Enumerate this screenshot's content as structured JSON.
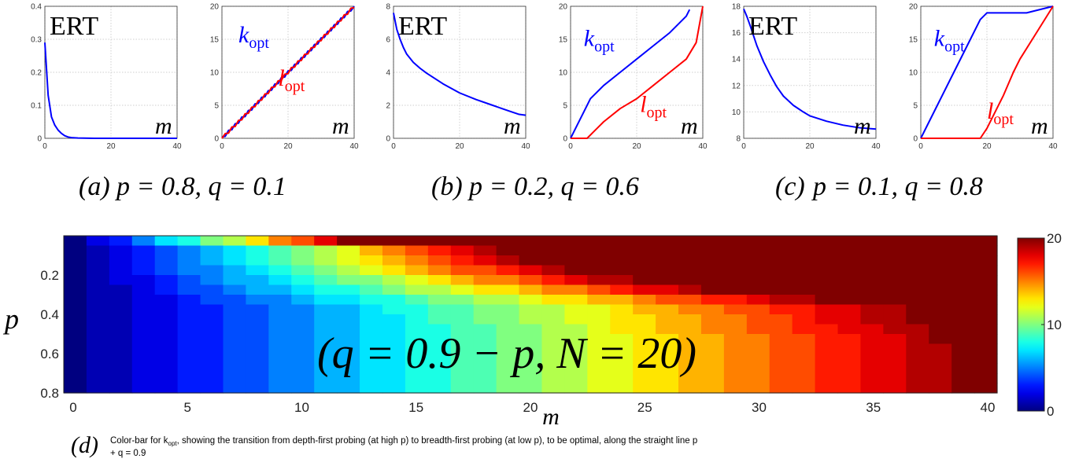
{
  "chart_data": [
    {
      "id": "a_ert",
      "type": "line",
      "title": "ERT",
      "xlabel": "m",
      "xlim": [
        0,
        40
      ],
      "ylim": [
        0,
        0.4
      ],
      "xticks": [
        "0",
        "20",
        "40"
      ],
      "yticks": [
        "0",
        "0.1",
        "0.2",
        "0.3",
        "0.4"
      ],
      "series": [
        {
          "color": "#0000ff",
          "x": [
            0,
            1,
            2,
            3,
            4,
            5,
            6,
            7,
            8,
            10,
            15,
            20,
            30,
            40
          ],
          "y": [
            0.29,
            0.13,
            0.065,
            0.04,
            0.025,
            0.015,
            0.008,
            0.004,
            0.002,
            0.001,
            0,
            0,
            0,
            0
          ]
        }
      ]
    },
    {
      "id": "a_opt",
      "type": "line",
      "xlabel": "m",
      "xlim": [
        0,
        40
      ],
      "ylim": [
        0,
        20
      ],
      "xticks": [
        "0",
        "20",
        "40"
      ],
      "yticks": [
        "0",
        "5",
        "10",
        "15",
        "20"
      ],
      "series": [
        {
          "name": "k_opt",
          "color": "#0000ff",
          "label_pos": [
            5,
            14.5
          ],
          "x": [
            0,
            10,
            20,
            30,
            40
          ],
          "y": [
            0,
            5,
            10,
            15,
            20
          ]
        },
        {
          "name": "l_opt",
          "color": "#ff0000",
          "label_pos": [
            17,
            8
          ],
          "x": [
            0,
            10,
            20,
            30,
            40
          ],
          "y": [
            0,
            5,
            10,
            15,
            20
          ]
        }
      ]
    },
    {
      "id": "b_ert",
      "type": "line",
      "title": "ERT",
      "xlabel": "m",
      "xlim": [
        0,
        40
      ],
      "ylim": [
        0,
        8
      ],
      "xticks": [
        "0",
        "20",
        "40"
      ],
      "yticks": [
        "0",
        "2",
        "4",
        "6",
        "8"
      ],
      "series": [
        {
          "color": "#0000ff",
          "x": [
            0,
            1,
            2,
            3,
            4,
            6,
            8,
            10,
            15,
            20,
            25,
            30,
            35,
            38,
            40
          ],
          "y": [
            7.6,
            6.6,
            6.0,
            5.5,
            5.1,
            4.6,
            4.25,
            3.95,
            3.3,
            2.75,
            2.35,
            2.0,
            1.65,
            1.45,
            1.4
          ]
        }
      ]
    },
    {
      "id": "b_opt",
      "type": "line",
      "xlabel": "m",
      "xlim": [
        0,
        40
      ],
      "ylim": [
        0,
        20
      ],
      "xticks": [
        "0",
        "20",
        "40"
      ],
      "yticks": [
        "0",
        "5",
        "10",
        "15",
        "20"
      ],
      "series": [
        {
          "name": "k_opt",
          "color": "#0000ff",
          "label_pos": [
            4,
            14
          ],
          "x": [
            0,
            2,
            4,
            6,
            8,
            10,
            15,
            20,
            25,
            30,
            35,
            36
          ],
          "y": [
            0,
            2,
            4,
            6,
            7,
            8,
            10,
            12,
            14,
            16,
            18.5,
            19.5
          ]
        },
        {
          "name": "l_opt",
          "color": "#ff0000",
          "label_pos": [
            21,
            4
          ],
          "x": [
            0,
            5,
            7,
            10,
            15,
            20,
            25,
            30,
            35,
            38,
            40
          ],
          "y": [
            0,
            0,
            1,
            2.5,
            4.5,
            6,
            8,
            10,
            12,
            14.5,
            20
          ]
        }
      ]
    },
    {
      "id": "c_ert",
      "type": "line",
      "title": "ERT",
      "xlabel": "m",
      "xlim": [
        0,
        40
      ],
      "ylim": [
        8,
        18
      ],
      "xticks": [
        "0",
        "20",
        "40"
      ],
      "yticks": [
        "8",
        "10",
        "12",
        "14",
        "16",
        "18"
      ],
      "series": [
        {
          "color": "#0000ff",
          "x": [
            0,
            1,
            2,
            4,
            6,
            8,
            10,
            12,
            15,
            18,
            20,
            25,
            30,
            35,
            40
          ],
          "y": [
            17.8,
            17.2,
            16.5,
            15.0,
            13.8,
            12.8,
            11.9,
            11.2,
            10.5,
            10.0,
            9.7,
            9.3,
            9.0,
            8.8,
            8.7
          ]
        }
      ]
    },
    {
      "id": "c_opt",
      "type": "line",
      "xlabel": "m",
      "xlim": [
        0,
        40
      ],
      "ylim": [
        0,
        20
      ],
      "xticks": [
        "0",
        "20",
        "40"
      ],
      "yticks": [
        "0",
        "5",
        "10",
        "15",
        "20"
      ],
      "series": [
        {
          "name": "k_opt",
          "color": "#0000ff",
          "label_pos": [
            4,
            14
          ],
          "x": [
            0,
            5,
            10,
            15,
            18,
            20,
            32,
            40
          ],
          "y": [
            0,
            5,
            10,
            15,
            18,
            19,
            19,
            20
          ]
        },
        {
          "name": "l_opt",
          "color": "#ff0000",
          "label_pos": [
            20,
            3
          ],
          "x": [
            0,
            18,
            20,
            23,
            25,
            28,
            30,
            35,
            40
          ],
          "y": [
            0,
            0,
            1.5,
            4.5,
            6.5,
            10,
            12,
            16,
            20
          ]
        }
      ]
    },
    {
      "id": "d_heatmap",
      "type": "heatmap",
      "xlabel": "m",
      "ylabel": "p",
      "annotation": "(q = 0.9 − p, N = 20)",
      "xlim": [
        0,
        40
      ],
      "ylim": [
        0.8,
        0
      ],
      "xticks": [
        "0",
        "5",
        "10",
        "15",
        "20",
        "25",
        "30",
        "35",
        "40"
      ],
      "yticks": [
        "0.2",
        "0.4",
        "0.6",
        "0.8"
      ],
      "colorbar": {
        "min": 0,
        "max": 20,
        "ticks": [
          "0",
          "10",
          "20"
        ]
      },
      "value_model": "k_opt ≈ clamp(m/2 at bottom → higher at top, 0..20)"
    }
  ],
  "captions": [
    {
      "label": "(a)",
      "text": "p = 0.8, q = 0.1"
    },
    {
      "label": "(b)",
      "text": "p = 0.2, q = 0.6"
    },
    {
      "label": "(c)",
      "text": "p = 0.1, q = 0.8"
    }
  ],
  "caption_d": {
    "label": "(d)",
    "line1": "Color-bar for k",
    "line1_sub": "opt",
    "line1_rest": ", showing the transition from depth-first probing (at high p) to breadth-first probing (at low p), to be optimal, along the straight line p",
    "line2": "+ q = 0.9"
  },
  "colors": {
    "blue": "#0000ff",
    "red": "#ff0000",
    "grid": "#cfcfcf"
  }
}
